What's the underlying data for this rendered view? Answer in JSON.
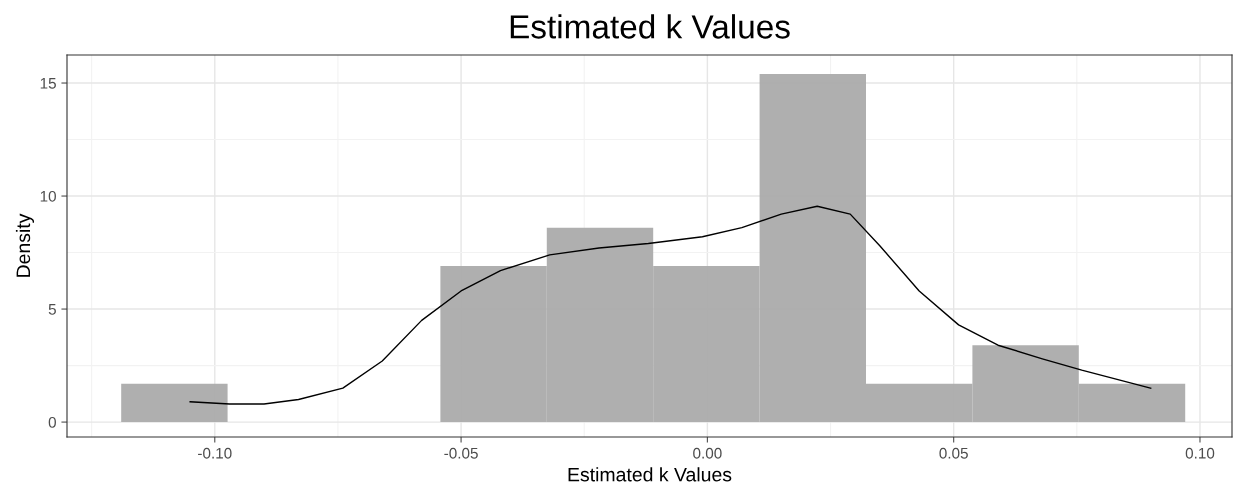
{
  "chart_data": {
    "type": "histogram",
    "title": "Estimated k Values",
    "xlabel": "Estimated k Values",
    "ylabel": "Density",
    "bins": [
      -0.119,
      -0.0974,
      -0.0758,
      -0.0542,
      -0.0326,
      -0.011,
      0.0106,
      0.0322,
      0.0538,
      0.0754,
      0.097
    ],
    "values": [
      1.7,
      0,
      0,
      6.9,
      8.6,
      6.9,
      15.4,
      1.7,
      3.4,
      1.7
    ],
    "color": "#ababab",
    "series": [
      {
        "type": "line",
        "color": "#000000",
        "x": [
          -0.105,
          -0.097,
          -0.09,
          -0.083,
          -0.074,
          -0.066,
          -0.058,
          -0.05,
          -0.042,
          -0.032,
          -0.022,
          -0.012,
          -0.001,
          0.007,
          0.015,
          0.0223,
          0.029,
          0.035,
          0.043,
          0.051,
          0.059,
          0.068,
          0.076,
          0.09
        ],
        "values": [
          0.9,
          0.8,
          0.8,
          1.0,
          1.5,
          2.7,
          4.5,
          5.8,
          6.7,
          7.4,
          7.7,
          7.9,
          8.2,
          8.6,
          9.2,
          9.55,
          9.2,
          7.8,
          5.8,
          4.3,
          3.4,
          2.8,
          2.3,
          1.5
        ]
      }
    ],
    "xlim": [
      -0.13,
      0.1065
    ],
    "ylim": [
      -0.66,
      16.24
    ],
    "xticks": [
      {
        "value": -0.1,
        "label": "-0.10"
      },
      {
        "value": -0.05,
        "label": "-0.05"
      },
      {
        "value": 0,
        "label": "0.00"
      },
      {
        "value": 0.05,
        "label": "0.05"
      },
      {
        "value": 0.1,
        "label": "0.10"
      }
    ],
    "yticks": [
      0,
      5,
      10,
      15
    ],
    "grid": true,
    "legend": false
  }
}
